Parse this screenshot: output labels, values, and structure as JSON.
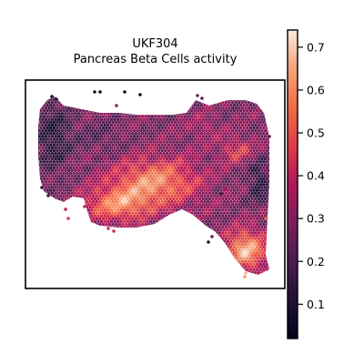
{
  "chart_data": {
    "type": "heatmap",
    "title": "UKF304",
    "subtitle": "Pancreas Beta Cells activity",
    "xlabel": "",
    "ylabel": "",
    "colormap": "rocket",
    "colorbar": {
      "range": [
        0.02,
        0.74
      ],
      "ticks": [
        0.1,
        0.2,
        0.3,
        0.4,
        0.5,
        0.6,
        0.7
      ],
      "tick_labels": [
        "0.1",
        "0.2",
        "0.3",
        "0.4",
        "0.5",
        "0.6",
        "0.7"
      ]
    },
    "colors": {
      "low": "#03051a",
      "mid": "#c0194d",
      "high": "#faebdd"
    }
  }
}
